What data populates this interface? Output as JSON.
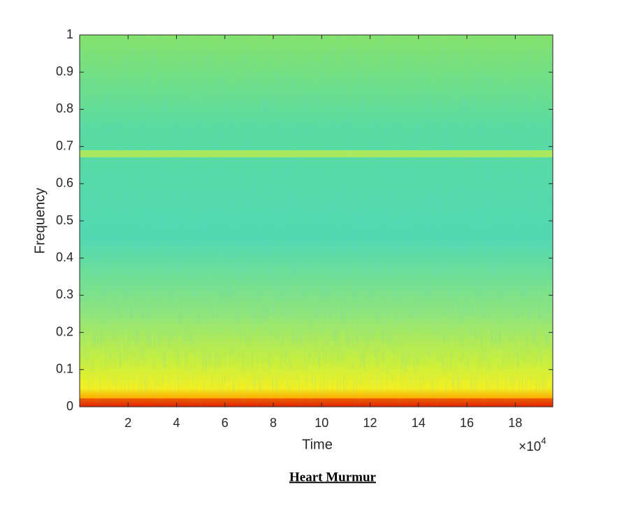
{
  "chart_data": {
    "type": "spectrogram",
    "xlabel": "Time",
    "ylabel": "Frequency",
    "x_multiplier": {
      "base": "×10",
      "exponent": "4"
    },
    "xlim": [
      0,
      19.55
    ],
    "xticks": [
      2,
      4,
      6,
      8,
      10,
      12,
      14,
      16,
      18
    ],
    "ylim": [
      0,
      1
    ],
    "yticks": [
      0,
      0.1,
      0.2,
      0.3,
      0.4,
      0.5,
      0.6,
      0.7,
      0.8,
      0.9,
      1
    ],
    "caption": "Heart Murmur"
  }
}
